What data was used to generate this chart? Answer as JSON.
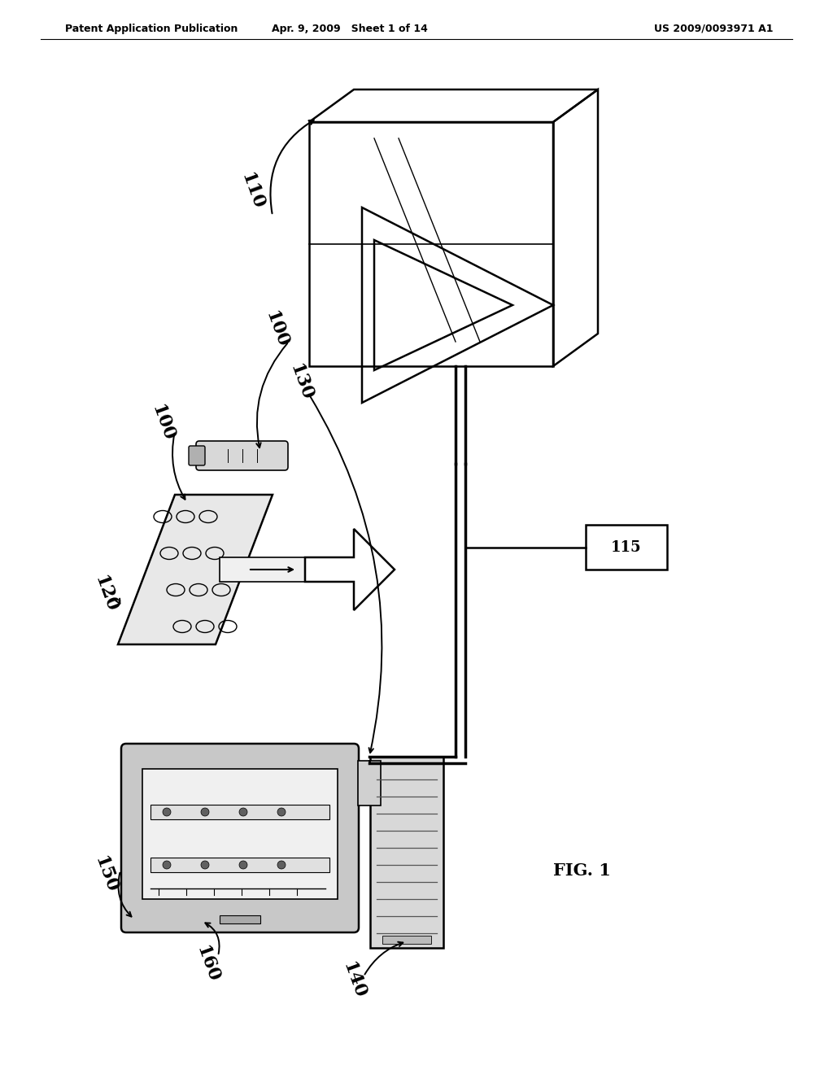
{
  "background_color": "#ffffff",
  "header_left": "Patent Application Publication",
  "header_mid": "Apr. 9, 2009   Sheet 1 of 14",
  "header_right": "US 2009/0093971 A1",
  "figure_label": "FIG. 1"
}
